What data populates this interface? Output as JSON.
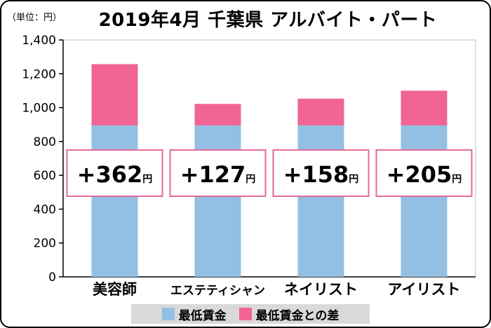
{
  "title": "2019年4月 千葉県 アルバイト・パート",
  "unit_label": "（単位：円）",
  "colors": {
    "min_wage": "#92bfe2",
    "diff": "#f06496",
    "callout_border": "#e36b9b",
    "axis": "#000000",
    "plot_border": "#bfbfbf",
    "legend_bg": "#d9d9d9"
  },
  "legend": [
    {
      "label": "最低賃金",
      "color": "#92bfe2"
    },
    {
      "label": "最低賃金との差",
      "color": "#f06496"
    }
  ],
  "chart_data": {
    "type": "bar",
    "stacked": true,
    "title": "2019年4月 千葉県 アルバイト・パート",
    "categories": [
      "美容師",
      "エステティシャン",
      "ネイリスト",
      "アイリスト"
    ],
    "series": [
      {
        "name": "最低賃金",
        "values": [
          895,
          895,
          895,
          895
        ]
      },
      {
        "name": "最低賃金との差",
        "values": [
          362,
          127,
          158,
          205
        ]
      }
    ],
    "ylim": [
      0,
      1400
    ],
    "yticks": [
      0,
      200,
      400,
      600,
      800,
      1000,
      1200,
      1400
    ],
    "ytick_labels": [
      "0",
      "200",
      "400",
      "600",
      "800",
      "1,000",
      "1,200",
      "1,400"
    ],
    "callouts": [
      "+362",
      "+127",
      "+158",
      "+205"
    ],
    "callout_unit": "円",
    "xlabel": "",
    "ylabel": "",
    "grid": false,
    "legend_position": "bottom"
  }
}
